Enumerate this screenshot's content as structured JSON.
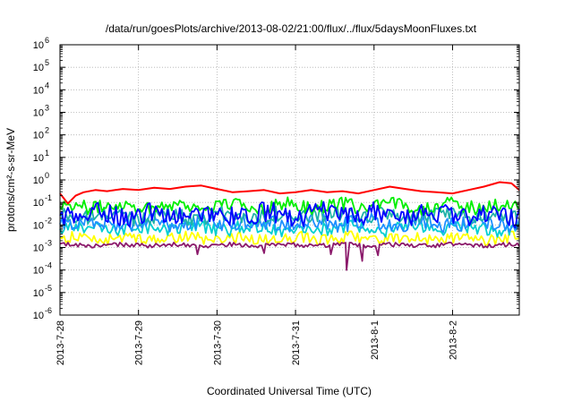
{
  "chart_data": {
    "type": "line",
    "title": "/data/run/goesPlots/archive/2013-08-02/21:00/flux/../flux/5daysMoonFluxes.txt",
    "xlabel": "Coordinated Universal Time (UTC)",
    "ylabel": "protons/cm²-s-sr-MeV",
    "y_scale": "log",
    "ylim_exponents": [
      -6,
      6
    ],
    "y_tick_labels": [
      "10",
      "10",
      "10",
      "10",
      "10",
      "10",
      "10",
      "10",
      "10",
      "10",
      "10",
      "10",
      "10"
    ],
    "y_tick_exponents": [
      "-6",
      "-5",
      "-4",
      "-3",
      "-2",
      "-1",
      "0",
      "1",
      "2",
      "3",
      "4",
      "5",
      "6"
    ],
    "x_tick_labels": [
      "2013-7-28",
      "2013-7-29",
      "2013-7-30",
      "2013-7-31",
      "2013-8-1",
      "2013-8-2"
    ],
    "x_range_days": [
      0,
      5.85
    ],
    "grid": true,
    "series": [
      {
        "color": "#ff0000",
        "base": -0.55,
        "amp": 0.18,
        "x": [
          0,
          0.1,
          0.2,
          0.3,
          0.45,
          0.6,
          0.8,
          1.0,
          1.2,
          1.4,
          1.6,
          1.8,
          2.0,
          2.2,
          2.4,
          2.6,
          2.8,
          3.0,
          3.2,
          3.4,
          3.6,
          3.8,
          4.0,
          4.2,
          4.4,
          4.6,
          4.8,
          5.0,
          5.2,
          5.4,
          5.6,
          5.75,
          5.85
        ],
        "y": [
          -0.6,
          -1.05,
          -0.7,
          -0.55,
          -0.45,
          -0.5,
          -0.4,
          -0.45,
          -0.35,
          -0.4,
          -0.3,
          -0.25,
          -0.4,
          -0.55,
          -0.5,
          -0.45,
          -0.6,
          -0.55,
          -0.45,
          -0.55,
          -0.5,
          -0.6,
          -0.45,
          -0.3,
          -0.4,
          -0.5,
          -0.55,
          -0.6,
          -0.45,
          -0.3,
          -0.1,
          -0.15,
          -0.45
        ]
      },
      {
        "color": "#00ee00",
        "base": -1.15,
        "amp": 0.3
      },
      {
        "color": "#20b2aa",
        "base": -1.6,
        "amp": 0.35
      },
      {
        "color": "#0000ff",
        "base": -1.55,
        "amp": 0.45
      },
      {
        "color": "#1e90ff",
        "base": -1.9,
        "amp": 0.35
      },
      {
        "color": "#00ced1",
        "base": -2.15,
        "amp": 0.3
      },
      {
        "color": "#ffff00",
        "base": -2.6,
        "amp": 0.25
      },
      {
        "color": "#8b1a6b",
        "base": -2.9,
        "amp": 0.1
      }
    ],
    "spikes_series_index": 7,
    "spikes": [
      {
        "x": 1.75,
        "y": -3.3
      },
      {
        "x": 2.6,
        "y": -3.25
      },
      {
        "x": 3.45,
        "y": -3.3
      },
      {
        "x": 3.65,
        "y": -4.0
      },
      {
        "x": 3.85,
        "y": -3.6
      },
      {
        "x": 4.05,
        "y": -3.35
      }
    ]
  }
}
